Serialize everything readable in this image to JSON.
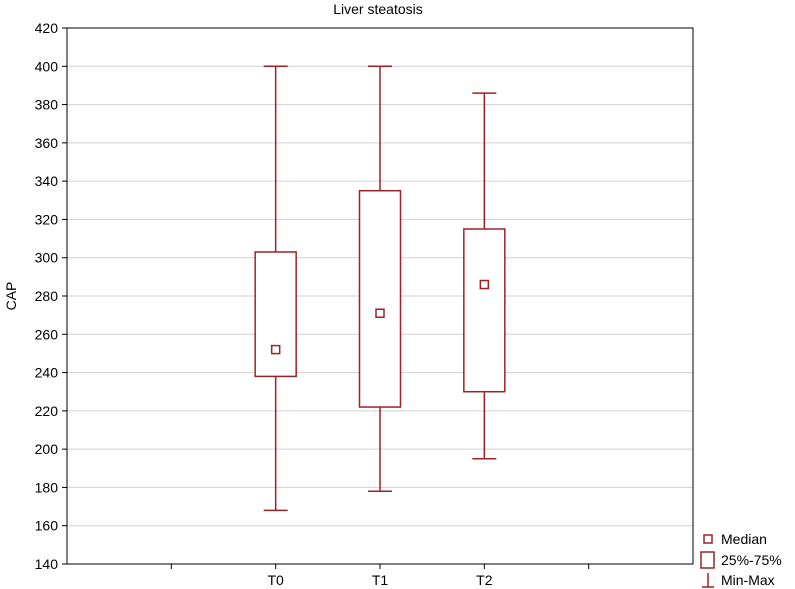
{
  "chart_data": {
    "type": "box",
    "title": "Liver steatosis",
    "xlabel": "",
    "ylabel": "CAP",
    "ylim": [
      140,
      420
    ],
    "yticks": [
      140,
      160,
      180,
      200,
      220,
      240,
      260,
      280,
      300,
      320,
      340,
      360,
      380,
      400,
      420
    ],
    "grid": true,
    "categories": [
      "T0",
      "T1",
      "T2"
    ],
    "boxes": [
      {
        "category": "T0",
        "min": 168,
        "q1": 238,
        "median": 252,
        "q3": 303,
        "max": 400
      },
      {
        "category": "T1",
        "min": 178,
        "q1": 222,
        "median": 271,
        "q3": 335,
        "max": 400
      },
      {
        "category": "T2",
        "min": 195,
        "q1": 230,
        "median": 286,
        "q3": 315,
        "max": 386
      }
    ],
    "legend": {
      "position": "bottom-right",
      "entries": [
        {
          "symbol": "median",
          "label": "Median"
        },
        {
          "symbol": "box",
          "label": "25%-75%"
        },
        {
          "symbol": "whisker",
          "label": "Min-Max"
        }
      ]
    },
    "colors": {
      "series": "#9b2226",
      "grid": "#d0d0d0",
      "axis": "#000000"
    }
  }
}
